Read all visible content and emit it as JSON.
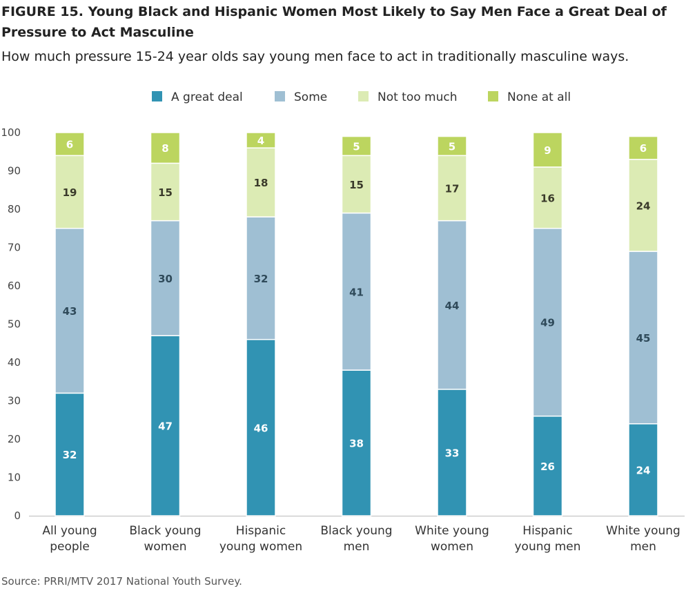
{
  "title": "FIGURE 15.  Young Black and Hispanic Women Most Likely to Say Men Face a Great Deal of Pressure to Act Masculine",
  "subtitle": "How much pressure 15-24 year olds say young men face to act in traditionally masculine ways.",
  "source": "Source: PRRI/MTV 2017 National Youth Survey.",
  "chart_data": {
    "type": "bar",
    "stacked": true,
    "categories": [
      [
        "All young",
        "people"
      ],
      [
        "Black young",
        "women"
      ],
      [
        "Hispanic",
        "young women"
      ],
      [
        "Black young",
        "men"
      ],
      [
        "White young",
        "women"
      ],
      [
        "Hispanic",
        "young men"
      ],
      [
        "White young",
        "men"
      ]
    ],
    "series": [
      {
        "name": "A great deal",
        "color": "#3193b3",
        "label_color": "#ffffff",
        "values": [
          32,
          47,
          46,
          38,
          33,
          26,
          24
        ]
      },
      {
        "name": "Some",
        "color": "#9fbfd3",
        "label_color": "#2f4a5a",
        "values": [
          43,
          30,
          32,
          41,
          44,
          49,
          45
        ]
      },
      {
        "name": "Not too much",
        "color": "#dcebb4",
        "label_color": "#3a3a2a",
        "values": [
          19,
          15,
          18,
          15,
          17,
          16,
          24
        ]
      },
      {
        "name": "None at all",
        "color": "#bcd55f",
        "label_color": "#ffffff",
        "values": [
          6,
          8,
          4,
          5,
          5,
          9,
          6
        ]
      }
    ],
    "ylim": [
      0,
      100
    ],
    "yticks": [
      0,
      10,
      20,
      30,
      40,
      50,
      60,
      70,
      80,
      90,
      100
    ],
    "grid": false,
    "legend_position": "top-center"
  }
}
